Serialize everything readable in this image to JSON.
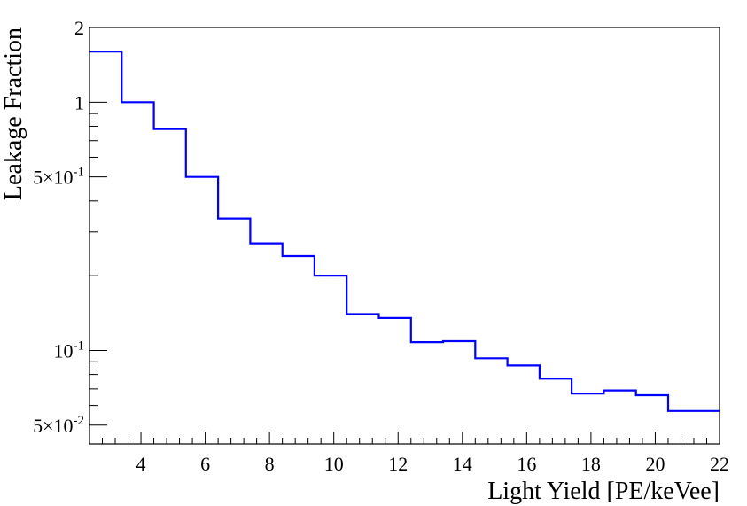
{
  "chart_data": {
    "type": "line",
    "style": "step-histogram",
    "title": "",
    "xlabel": "Light Yield [PE/keVee]",
    "ylabel": "Leakage Fraction",
    "xlim": [
      2.4,
      22.0
    ],
    "ylim": [
      0.042,
      2.0
    ],
    "yscale": "log",
    "grid": false,
    "line_color": "#0000ff",
    "bin_edges": [
      2.4,
      3.4,
      4.4,
      5.4,
      6.4,
      7.4,
      8.4,
      9.4,
      10.4,
      11.4,
      12.4,
      13.4,
      14.4,
      15.4,
      16.4,
      17.4,
      18.4,
      19.4,
      20.4,
      22.0
    ],
    "values": [
      1.6,
      1.0,
      0.78,
      0.5,
      0.34,
      0.27,
      0.24,
      0.2,
      0.14,
      0.135,
      0.108,
      0.109,
      0.093,
      0.087,
      0.077,
      0.067,
      0.069,
      0.066,
      0.057
    ],
    "x_ticks": [
      {
        "value": 4,
        "label": "4"
      },
      {
        "value": 6,
        "label": "6"
      },
      {
        "value": 8,
        "label": "8"
      },
      {
        "value": 10,
        "label": "10"
      },
      {
        "value": 12,
        "label": "12"
      },
      {
        "value": 14,
        "label": "14"
      },
      {
        "value": 16,
        "label": "16"
      },
      {
        "value": 18,
        "label": "18"
      },
      {
        "value": 20,
        "label": "20"
      },
      {
        "value": 22,
        "label": "22"
      }
    ],
    "y_ticks": [
      {
        "value": 2,
        "base": "2",
        "exp": ""
      },
      {
        "value": 1,
        "base": "1",
        "exp": ""
      },
      {
        "value": 0.5,
        "base": "5×10",
        "exp": "-1"
      },
      {
        "value": 0.1,
        "base": "10",
        "exp": "-1"
      },
      {
        "value": 0.05,
        "base": "5×10",
        "exp": "-2"
      }
    ]
  }
}
